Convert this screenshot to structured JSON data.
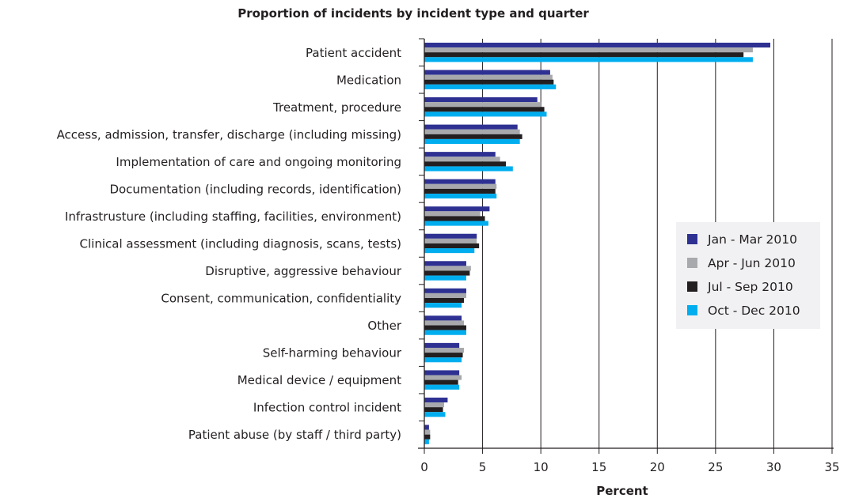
{
  "chart_data": {
    "type": "bar",
    "orientation": "horizontal",
    "title": "Proportion of incidents by incident type and quarter",
    "xlabel": "Percent",
    "ylabel": "",
    "xlim": [
      0,
      35
    ],
    "xticks": [
      "0",
      "5",
      "10",
      "15",
      "20",
      "25",
      "30",
      "35"
    ],
    "grid": "vertical",
    "legend_position": "right",
    "categories": [
      "Patient accident",
      "Medication",
      "Treatment, procedure",
      "Access, admission, transfer, discharge (including missing)",
      "Implementation of care and ongoing monitoring",
      "Documentation (including records, identification)",
      "Infrastrusture (including staffing, facilities, environment)",
      "Clinical assessment (including diagnosis, scans, tests)",
      "Disruptive, aggressive behaviour",
      "Consent, communication, confidentiality",
      "Other",
      "Self-harming behaviour",
      "Medical device / equipment",
      "Infection control incident",
      "Patient abuse (by staff / third party)"
    ],
    "series": [
      {
        "name": "Jan - Mar 2010",
        "color": "#2e3192",
        "values": [
          29.7,
          10.8,
          9.7,
          8.0,
          6.1,
          6.1,
          5.6,
          4.5,
          3.6,
          3.6,
          3.2,
          3.0,
          3.0,
          2.0,
          0.4
        ]
      },
      {
        "name": "Apr - Jun 2010",
        "color": "#a7a9ac",
        "values": [
          28.2,
          11.0,
          10.0,
          8.2,
          6.5,
          6.2,
          4.8,
          4.5,
          4.0,
          3.6,
          3.4,
          3.4,
          3.2,
          1.7,
          0.5
        ]
      },
      {
        "name": "Jul - Sep 2010",
        "color": "#231f20",
        "values": [
          27.4,
          11.1,
          10.3,
          8.4,
          7.0,
          6.1,
          5.2,
          4.7,
          3.9,
          3.4,
          3.6,
          3.3,
          2.9,
          1.6,
          0.5
        ]
      },
      {
        "name": "Oct - Dec 2010",
        "color": "#00aeef",
        "values": [
          28.2,
          11.3,
          10.5,
          8.2,
          7.6,
          6.2,
          5.5,
          4.3,
          3.6,
          3.2,
          3.6,
          3.2,
          3.0,
          1.8,
          0.4
        ]
      }
    ]
  },
  "legend_bg": "#f1f1f3"
}
